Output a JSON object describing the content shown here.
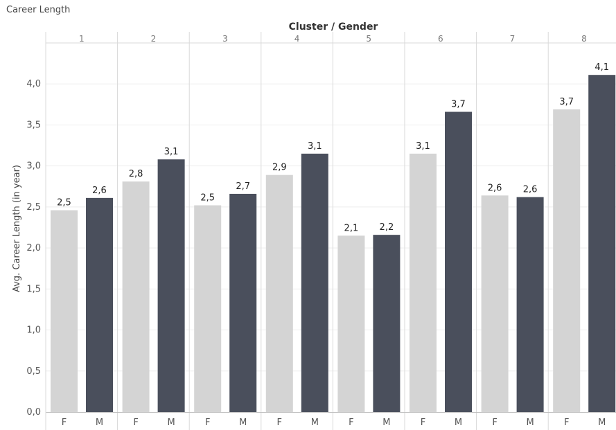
{
  "sheet_title": "Career Length",
  "colors": {
    "F": "#d4d4d4",
    "M": "#4a4f5c",
    "grid": "#eeeeee",
    "divider": "#d9d9d9",
    "axis_text": "#555555"
  },
  "chart_data": {
    "type": "bar",
    "title": "Career Length",
    "column_header": "Cluster / Gender",
    "ylabel": "Avg. Career Length (in year)",
    "xlabel": "",
    "ylim": [
      0,
      4.5
    ],
    "y_ticks": [
      "0,0",
      "0,5",
      "1,0",
      "1,5",
      "2,0",
      "2,5",
      "3,0",
      "3,5",
      "4,0"
    ],
    "y_tick_values": [
      0,
      0.5,
      1.0,
      1.5,
      2.0,
      2.5,
      3.0,
      3.5,
      4.0
    ],
    "grid": true,
    "legend": "none",
    "clusters": [
      {
        "name": "1",
        "bars": [
          {
            "gender": "F",
            "value": 2.46,
            "label": "2,5"
          },
          {
            "gender": "M",
            "value": 2.61,
            "label": "2,6"
          }
        ]
      },
      {
        "name": "2",
        "bars": [
          {
            "gender": "F",
            "value": 2.81,
            "label": "2,8"
          },
          {
            "gender": "M",
            "value": 3.08,
            "label": "3,1"
          }
        ]
      },
      {
        "name": "3",
        "bars": [
          {
            "gender": "F",
            "value": 2.52,
            "label": "2,5"
          },
          {
            "gender": "M",
            "value": 2.66,
            "label": "2,7"
          }
        ]
      },
      {
        "name": "4",
        "bars": [
          {
            "gender": "F",
            "value": 2.89,
            "label": "2,9"
          },
          {
            "gender": "M",
            "value": 3.15,
            "label": "3,1"
          }
        ]
      },
      {
        "name": "5",
        "bars": [
          {
            "gender": "F",
            "value": 2.15,
            "label": "2,1"
          },
          {
            "gender": "M",
            "value": 2.16,
            "label": "2,2"
          }
        ]
      },
      {
        "name": "6",
        "bars": [
          {
            "gender": "F",
            "value": 3.15,
            "label": "3,1"
          },
          {
            "gender": "M",
            "value": 3.66,
            "label": "3,7"
          }
        ]
      },
      {
        "name": "7",
        "bars": [
          {
            "gender": "F",
            "value": 2.64,
            "label": "2,6"
          },
          {
            "gender": "M",
            "value": 2.62,
            "label": "2,6"
          }
        ]
      },
      {
        "name": "8",
        "bars": [
          {
            "gender": "F",
            "value": 3.69,
            "label": "3,7"
          },
          {
            "gender": "M",
            "value": 4.11,
            "label": "4,1"
          }
        ]
      }
    ]
  }
}
